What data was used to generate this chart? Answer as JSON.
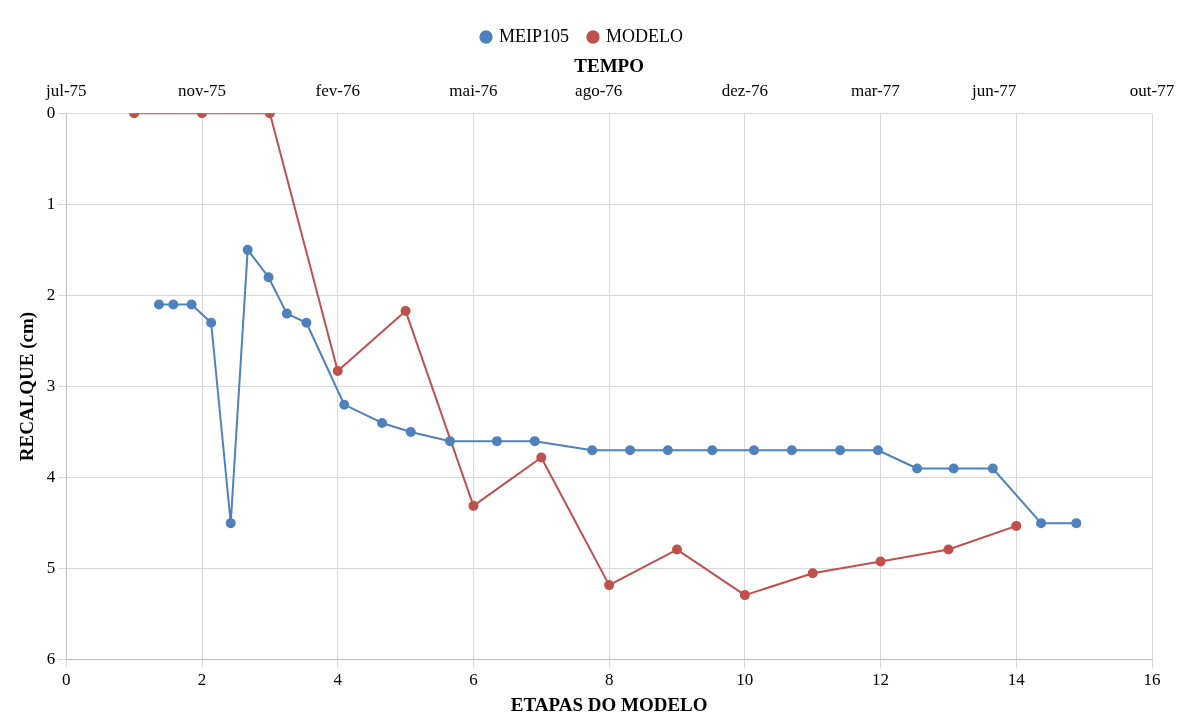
{
  "chart_data": {
    "type": "line",
    "xlabel": "ETAPAS DO MODELO",
    "x2label": "TEMPO",
    "ylabel": "RECALQUE (cm)",
    "xlim": [
      0,
      16
    ],
    "xticks": [
      0,
      2,
      4,
      6,
      8,
      10,
      12,
      14,
      16
    ],
    "x2lim": [
      "1975-07-20",
      "1977-10-29"
    ],
    "x2ticks": [
      {
        "value": "1975-07-20",
        "label": "jul-75"
      },
      {
        "value": "1975-11-01",
        "label": "nov-75"
      },
      {
        "value": "1976-02-13",
        "label": "fev-76"
      },
      {
        "value": "1976-05-27",
        "label": "mai-76"
      },
      {
        "value": "1976-08-31",
        "label": "ago-76"
      },
      {
        "value": "1976-12-21",
        "label": "dez-76"
      },
      {
        "value": "1977-03-31",
        "label": "mar-77"
      },
      {
        "value": "1977-06-30",
        "label": "jun-77"
      },
      {
        "value": "1977-10-29",
        "label": "out-77"
      }
    ],
    "ylim": [
      6,
      0
    ],
    "yticks": [
      0,
      1,
      2,
      3,
      4,
      5,
      6
    ],
    "grid": true,
    "legend": "top",
    "marker": "circle",
    "line_style": "solid",
    "series": [
      {
        "name": "MEIP105",
        "color": "#4f81bd",
        "axis": "x2",
        "x": [
          "1975-09-29",
          "1975-10-10",
          "1975-10-24",
          "1975-11-08",
          "1975-11-23",
          "1975-12-06",
          "1975-12-22",
          "1976-01-05",
          "1976-01-20",
          "1976-02-18",
          "1976-03-18",
          "1976-04-09",
          "1976-05-09",
          "1976-06-14",
          "1976-07-13",
          "1976-08-26",
          "1976-09-24",
          "1976-10-23",
          "1976-11-26",
          "1976-12-28",
          "1977-01-26",
          "1977-03-04",
          "1977-04-02",
          "1977-05-02",
          "1977-05-30",
          "1977-06-29",
          "1977-08-05",
          "1977-09-01"
        ],
        "values": [
          2.1,
          2.1,
          2.1,
          2.3,
          4.5,
          1.5,
          1.8,
          2.2,
          2.3,
          3.2,
          3.4,
          3.5,
          3.6,
          3.6,
          3.6,
          3.7,
          3.7,
          3.7,
          3.7,
          3.7,
          3.7,
          3.7,
          3.7,
          3.9,
          3.9,
          3.9,
          4.5,
          4.5
        ]
      },
      {
        "name": "MODELO",
        "color": "#c0504d",
        "x": [
          1,
          2,
          3,
          4,
          5,
          6,
          7,
          8,
          9,
          10,
          11,
          12,
          13,
          14
        ],
        "values": [
          0,
          0,
          0,
          2.83,
          2.17,
          4.31,
          3.78,
          5.18,
          4.79,
          5.29,
          5.05,
          4.92,
          4.79,
          4.53
        ]
      }
    ]
  }
}
